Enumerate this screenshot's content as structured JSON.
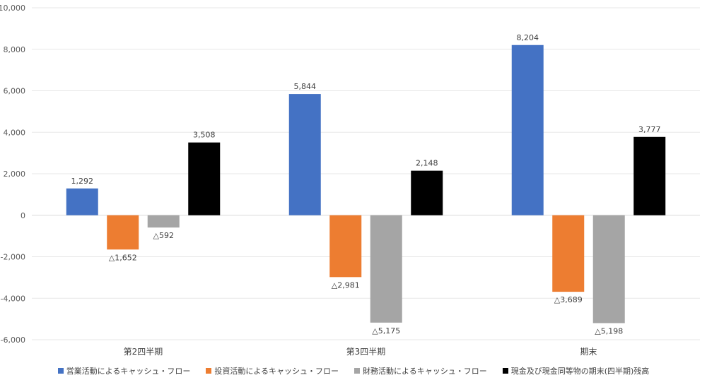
{
  "chart_data": {
    "type": "bar",
    "categories": [
      "第2四半期",
      "第3四半期",
      "期末"
    ],
    "series": [
      {
        "name": "営業活動によるキャッシュ・フロー",
        "color": "#4472C4",
        "values": [
          1292,
          5844,
          8204
        ],
        "labels": [
          "1,292",
          "5,844",
          "8,204"
        ]
      },
      {
        "name": "投資活動によるキャッシュ・フロー",
        "color": "#ED7D31",
        "values": [
          -1652,
          -2981,
          -3689
        ],
        "labels": [
          "△1,652",
          "△2,981",
          "△3,689"
        ]
      },
      {
        "name": "財務活動によるキャッシュ・フロー",
        "color": "#A5A5A5",
        "values": [
          -592,
          -5175,
          -5198
        ],
        "labels": [
          "△592",
          "△5,175",
          "△5,198"
        ]
      },
      {
        "name": "現金及び現金同等物の期末(四半期)残高",
        "color": "#000000",
        "values": [
          3508,
          2148,
          3777
        ],
        "labels": [
          "3,508",
          "2,148",
          "3,777"
        ]
      }
    ],
    "ylim": [
      -6000,
      10000
    ],
    "yticks": [
      10000,
      8000,
      6000,
      4000,
      2000,
      0,
      -2000,
      -4000,
      -6000
    ],
    "ytick_labels": [
      "10,000",
      "8,000",
      "6,000",
      "4,000",
      "2,000",
      "0",
      "-2,000",
      "-4,000",
      "-6,000"
    ],
    "grid": true,
    "legend_position": "bottom"
  }
}
